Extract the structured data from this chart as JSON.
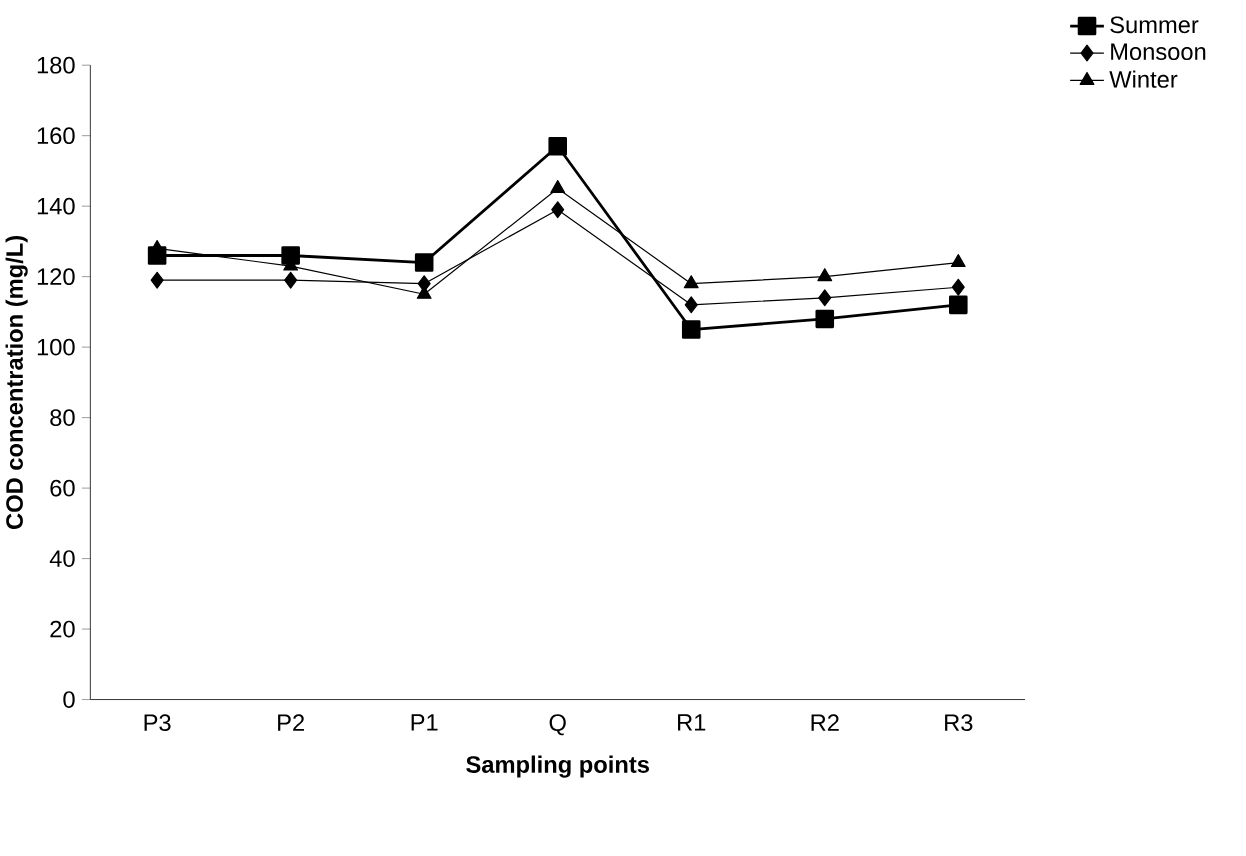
{
  "chart_data": {
    "type": "line",
    "xlabel": "Sampling points",
    "ylabel": "COD concentration (mg/L)",
    "categories": [
      "P3",
      "P2",
      "P1",
      "Q",
      "R1",
      "R2",
      "R3"
    ],
    "series": [
      {
        "name": "Summer",
        "color": "#000000",
        "marker": "square",
        "values": [
          126,
          126,
          124,
          157,
          105,
          108,
          112
        ]
      },
      {
        "name": "Monsoon",
        "color": "#000000",
        "marker": "diamond",
        "values": [
          119,
          119,
          118,
          139,
          112,
          114,
          117
        ]
      },
      {
        "name": "Winter",
        "color": "#000000",
        "marker": "triangle",
        "values": [
          128,
          123,
          115,
          145,
          118,
          120,
          124
        ]
      }
    ],
    "ylim": [
      0,
      180
    ],
    "yticks": [
      0,
      20,
      40,
      60,
      80,
      100,
      120,
      140,
      160,
      180
    ],
    "grid": false,
    "legend": "top right",
    "line_style": "solid"
  }
}
